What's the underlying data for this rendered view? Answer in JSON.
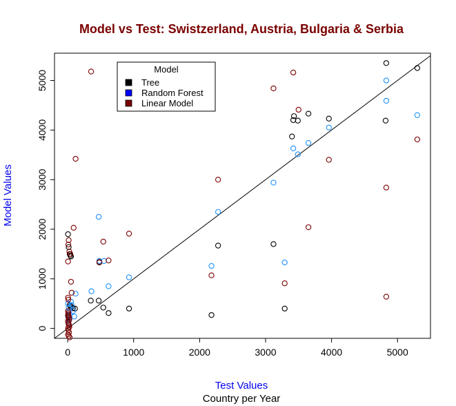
{
  "colors": {
    "title": "#7a0000",
    "axis_label": "#0000ee",
    "tree": "#000000",
    "random_forest": "#1e90ff",
    "linear_model": "#7a0000",
    "rf_legend_box": "#0000ff",
    "lm_legend_box": "#7a0000"
  },
  "chart_data": {
    "type": "scatter",
    "title": "Model vs Test: Swistzerland, Austria, Bulgaria & Serbia",
    "xlabel": "Test Values",
    "subtitle": "Country per Year",
    "ylabel": "Model Values",
    "xlim": [
      -200,
      5500
    ],
    "ylim": [
      -200,
      5550
    ],
    "xticks": [
      0,
      1000,
      2000,
      3000,
      4000,
      5000
    ],
    "yticks": [
      0,
      1000,
      2000,
      3000,
      4000,
      5000
    ],
    "reference_line": {
      "slope": 1,
      "intercept": 0
    },
    "legend": {
      "title": "Model",
      "position": "top-left",
      "entries": [
        "Tree",
        "Random Forest",
        "Linear Model"
      ]
    },
    "series": [
      {
        "name": "Tree",
        "color": "#000000",
        "points": [
          [
            5,
            1900
          ],
          [
            15,
            1640
          ],
          [
            30,
            1500
          ],
          [
            40,
            1470
          ],
          [
            50,
            1450
          ],
          [
            30,
            470
          ],
          [
            40,
            450
          ],
          [
            60,
            430
          ],
          [
            80,
            410
          ],
          [
            110,
            400
          ],
          [
            5,
            260
          ],
          [
            10,
            230
          ],
          [
            20,
            210
          ],
          [
            350,
            560
          ],
          [
            470,
            560
          ],
          [
            540,
            420
          ],
          [
            620,
            310
          ],
          [
            930,
            400
          ],
          [
            480,
            1330
          ],
          [
            2180,
            270
          ],
          [
            2280,
            1670
          ],
          [
            3120,
            1700
          ],
          [
            3290,
            400
          ],
          [
            3400,
            3870
          ],
          [
            3420,
            4200
          ],
          [
            3430,
            4280
          ],
          [
            3490,
            4190
          ],
          [
            3650,
            4330
          ],
          [
            3960,
            4230
          ],
          [
            4820,
            4190
          ],
          [
            4830,
            5350
          ],
          [
            5300,
            5250
          ]
        ]
      },
      {
        "name": "Random Forest",
        "color": "#1e90ff",
        "points": [
          [
            5,
            500
          ],
          [
            15,
            420
          ],
          [
            25,
            350
          ],
          [
            30,
            280
          ],
          [
            50,
            540
          ],
          [
            60,
            470
          ],
          [
            120,
            700
          ],
          [
            80,
            350
          ],
          [
            100,
            240
          ],
          [
            20,
            160
          ],
          [
            10,
            100
          ],
          [
            360,
            750
          ],
          [
            470,
            2250
          ],
          [
            480,
            1360
          ],
          [
            550,
            1360
          ],
          [
            620,
            850
          ],
          [
            930,
            1030
          ],
          [
            2180,
            1260
          ],
          [
            2280,
            2350
          ],
          [
            3120,
            2940
          ],
          [
            3290,
            1330
          ],
          [
            3420,
            3630
          ],
          [
            3490,
            3510
          ],
          [
            3650,
            3740
          ],
          [
            3960,
            4050
          ],
          [
            4830,
            5000
          ],
          [
            4830,
            4590
          ],
          [
            5300,
            4300
          ]
        ]
      },
      {
        "name": "Linear Model",
        "color": "#7a0000",
        "points": [
          [
            5,
            1350
          ],
          [
            10,
            1690
          ],
          [
            15,
            1780
          ],
          [
            25,
            1550
          ],
          [
            40,
            1500
          ],
          [
            50,
            940
          ],
          [
            60,
            720
          ],
          [
            90,
            2030
          ],
          [
            120,
            3420
          ],
          [
            355,
            5180
          ],
          [
            5,
            620
          ],
          [
            10,
            580
          ],
          [
            5,
            350
          ],
          [
            8,
            310
          ],
          [
            10,
            280
          ],
          [
            15,
            250
          ],
          [
            20,
            210
          ],
          [
            25,
            180
          ],
          [
            5,
            150
          ],
          [
            10,
            120
          ],
          [
            15,
            90
          ],
          [
            20,
            60
          ],
          [
            25,
            30
          ],
          [
            5,
            5
          ],
          [
            10,
            -30
          ],
          [
            20,
            -80
          ],
          [
            5,
            -120
          ],
          [
            15,
            -150
          ],
          [
            30,
            -180
          ],
          [
            540,
            1750
          ],
          [
            620,
            1370
          ],
          [
            480,
            1340
          ],
          [
            930,
            1910
          ],
          [
            2180,
            1070
          ],
          [
            2280,
            3000
          ],
          [
            3120,
            4840
          ],
          [
            3290,
            910
          ],
          [
            3420,
            5160
          ],
          [
            3500,
            4410
          ],
          [
            3650,
            2040
          ],
          [
            3960,
            3400
          ],
          [
            4830,
            2840
          ],
          [
            4830,
            640
          ],
          [
            5300,
            3810
          ]
        ]
      }
    ]
  }
}
